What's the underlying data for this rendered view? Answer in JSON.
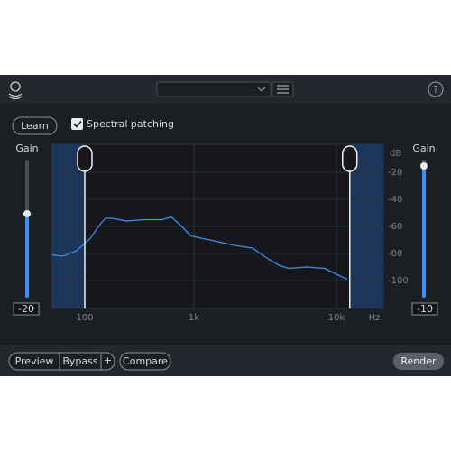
{
  "header": {
    "help": "?"
  },
  "controls": {
    "learn": "Learn",
    "spectral_patching": "Spectral patching",
    "spectral_patching_checked": true
  },
  "left_gain": {
    "label": "Gain",
    "value": -20
  },
  "right_gain": {
    "label": "Gain",
    "value": -10
  },
  "chart_data": {
    "type": "line",
    "y_unit": "dB",
    "x_unit": "Hz",
    "xscale": "log",
    "x": [
      50,
      63,
      84,
      112,
      136,
      155,
      180,
      240,
      351,
      513,
      620,
      750,
      940,
      1160,
      1440,
      1930,
      2580,
      3210,
      4000,
      4620,
      6170,
      8260,
      10300,
      11900
    ],
    "series": [
      {
        "color": "#3d8ef0",
        "values": [
          -81,
          -82,
          -78,
          -69,
          -59,
          -54,
          -54,
          -56,
          -55,
          -55,
          -53,
          -59,
          -67,
          -69,
          -71,
          -74,
          -76,
          -83,
          -89,
          -91,
          -90,
          -91,
          -96,
          -99
        ]
      }
    ],
    "xlim": [
      50,
      21000
    ],
    "xticks": [
      100,
      {
        "value": 1000,
        "label": "1k"
      },
      {
        "value": 10000,
        "label": "10k"
      }
    ],
    "ylim": [
      0,
      -120
    ],
    "yticks": [
      -20,
      -40,
      -60,
      -80,
      -100
    ],
    "grid": true,
    "selection": [
      100,
      12400
    ]
  },
  "footer": {
    "preview": "Preview",
    "bypass": "Bypass",
    "add": "+",
    "compare": "Compare",
    "render": "Render"
  }
}
